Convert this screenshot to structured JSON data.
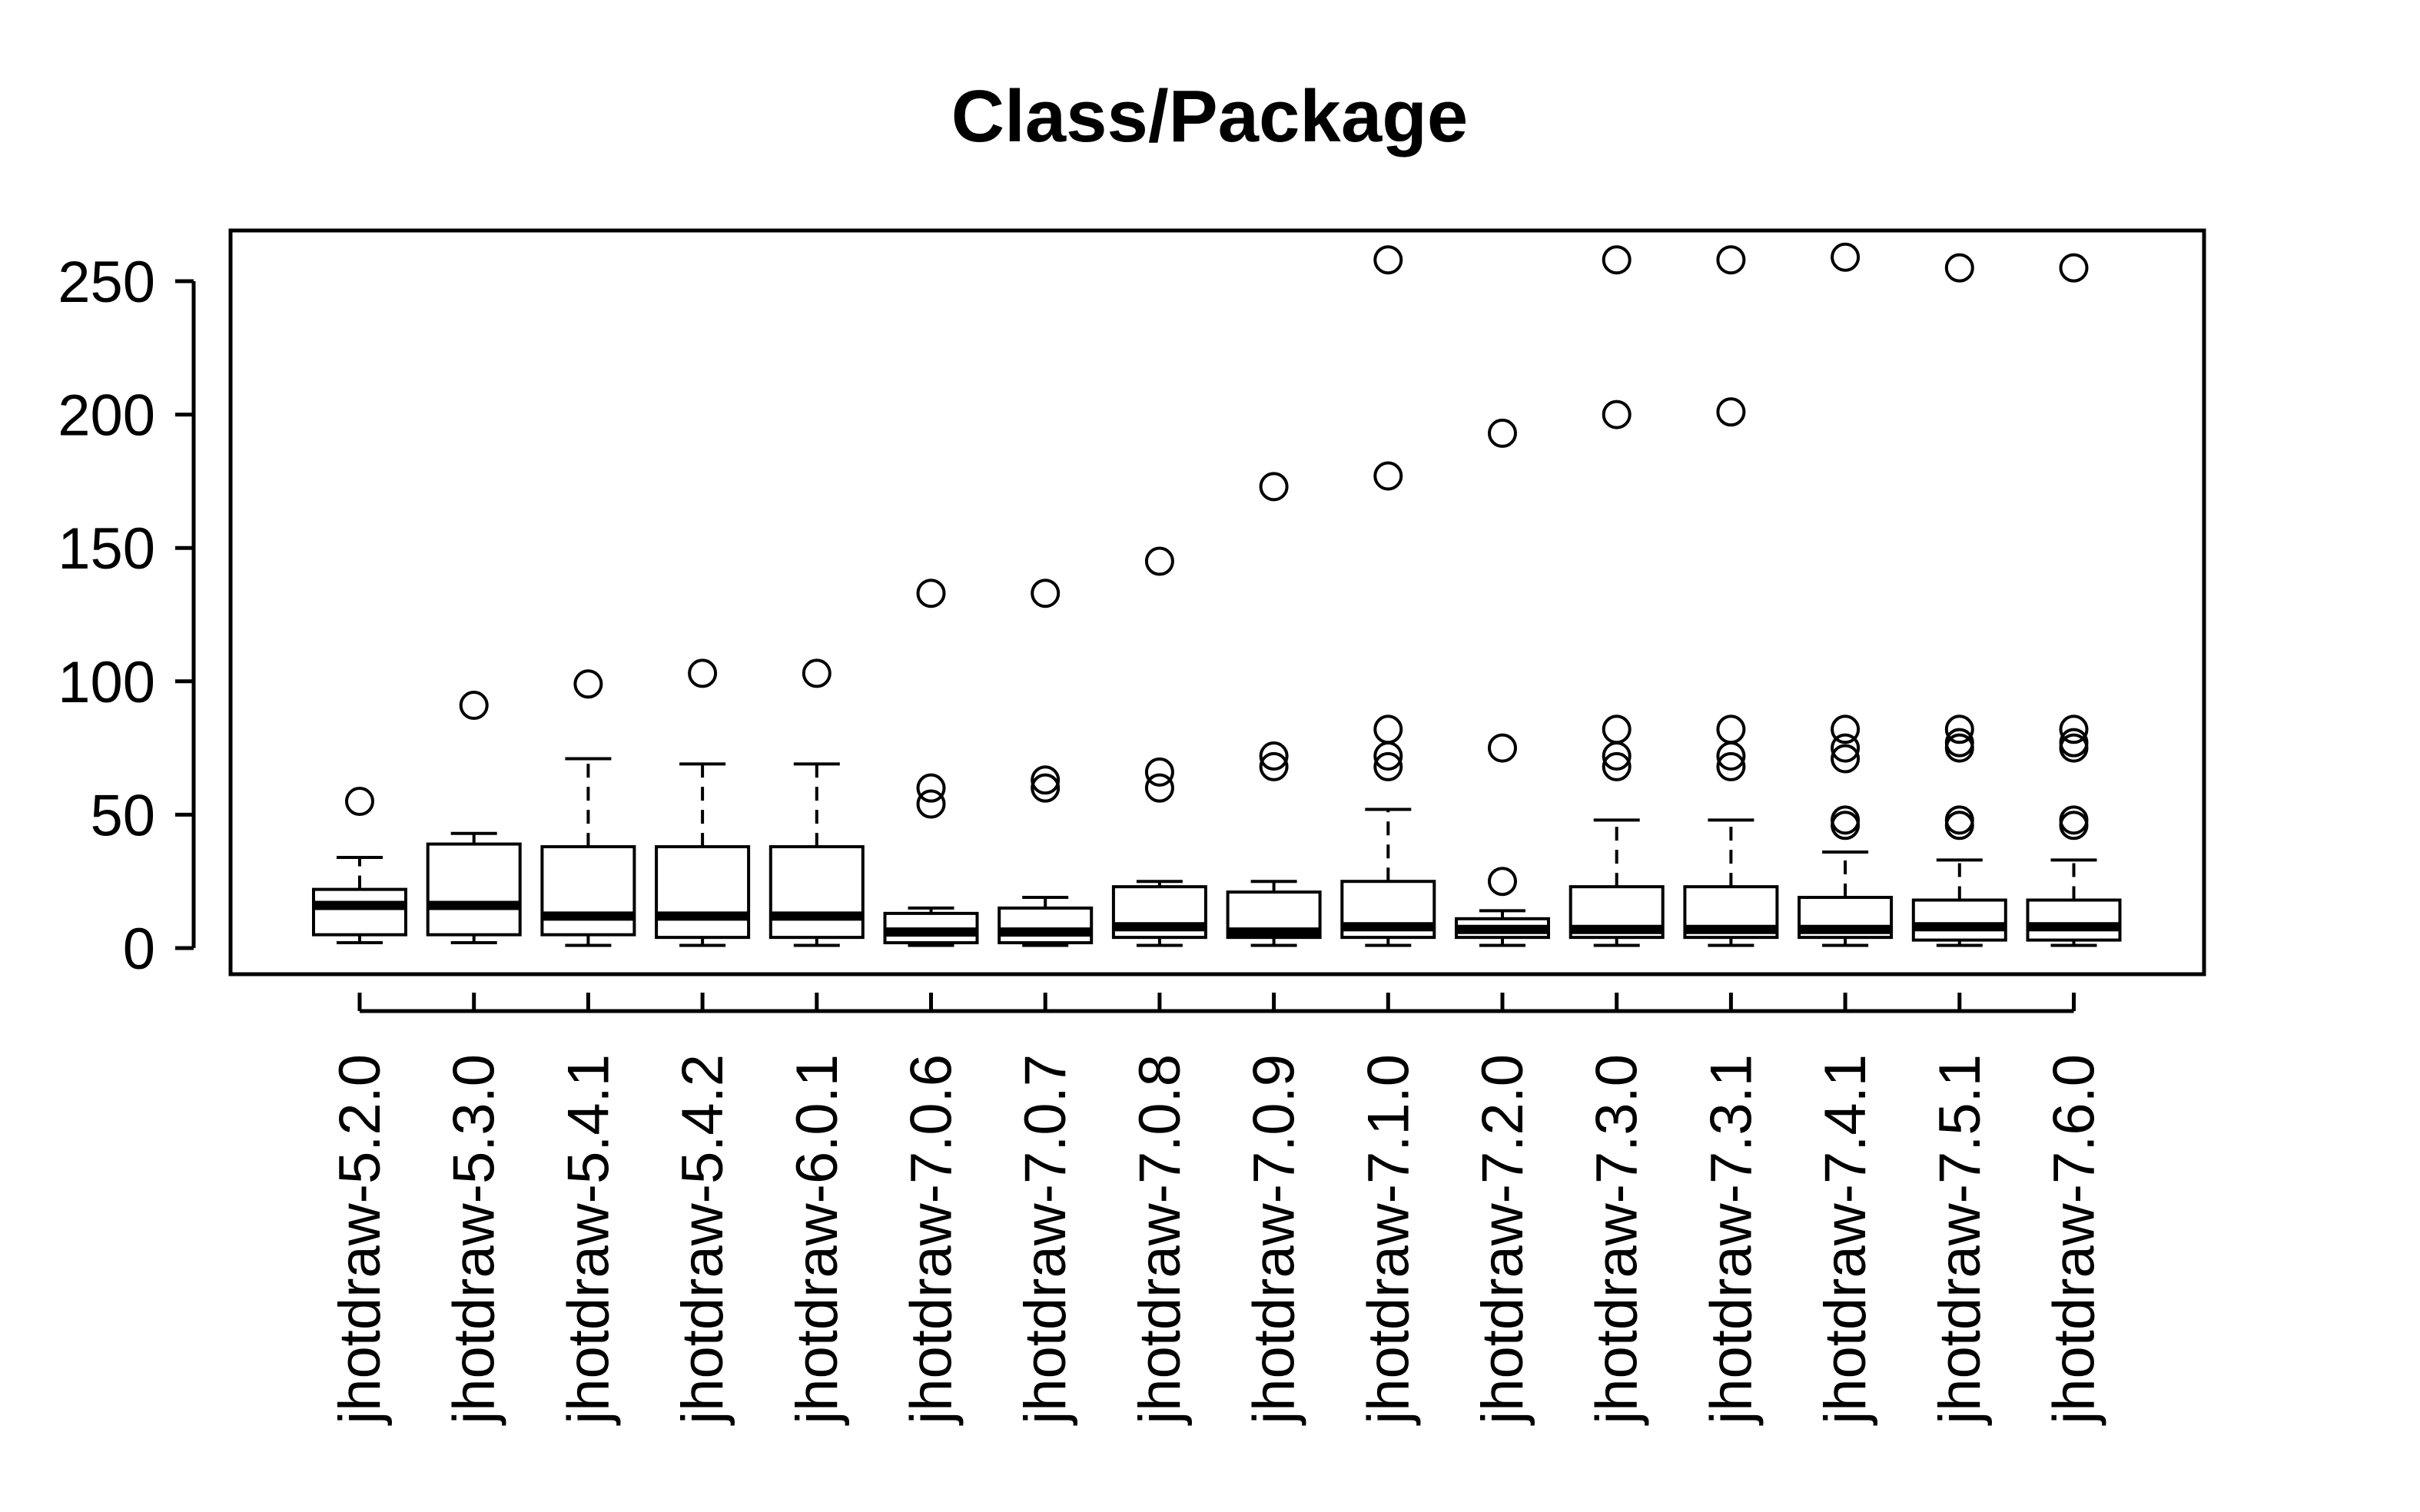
{
  "chart_data": {
    "type": "boxplot",
    "title": "Class/Package",
    "xlabel": "",
    "ylabel": "",
    "ylim": [
      -9,
      268
    ],
    "yticks": [
      0,
      50,
      100,
      150,
      200,
      250
    ],
    "grid": false,
    "legend": "none",
    "categories": [
      "jhotdraw-5.2.0",
      "jhotdraw-5.3.0",
      "jhotdraw-5.4.1",
      "jhotdraw-5.4.2",
      "jhotdraw-6.0.1",
      "jhotdraw-7.0.6",
      "jhotdraw-7.0.7",
      "jhotdraw-7.0.8",
      "jhotdraw-7.0.9",
      "jhotdraw-7.1.0",
      "jhotdraw-7.2.0",
      "jhotdraw-7.3.0",
      "jhotdraw-7.3.1",
      "jhotdraw-7.4.1",
      "jhotdraw-7.5.1",
      "jhotdraw-7.6.0"
    ],
    "boxes": [
      {
        "whisker_low": 2,
        "q1": 5,
        "median": 16,
        "q3": 22,
        "whisker_high": 34,
        "outliers": [
          55
        ]
      },
      {
        "whisker_low": 2,
        "q1": 5,
        "median": 16,
        "q3": 39,
        "whisker_high": 43,
        "outliers": [
          91
        ]
      },
      {
        "whisker_low": 1,
        "q1": 5,
        "median": 12,
        "q3": 38,
        "whisker_high": 71,
        "outliers": [
          99
        ]
      },
      {
        "whisker_low": 1,
        "q1": 4,
        "median": 12,
        "q3": 38,
        "whisker_high": 69,
        "outliers": [
          103
        ]
      },
      {
        "whisker_low": 1,
        "q1": 4,
        "median": 12,
        "q3": 38,
        "whisker_high": 69,
        "outliers": [
          103
        ]
      },
      {
        "whisker_low": 1,
        "q1": 2,
        "median": 6,
        "q3": 13,
        "whisker_high": 15,
        "outliers": [
          54,
          60,
          133
        ]
      },
      {
        "whisker_low": 1,
        "q1": 2,
        "median": 6,
        "q3": 15,
        "whisker_high": 19,
        "outliers": [
          60,
          63,
          133
        ]
      },
      {
        "whisker_low": 1,
        "q1": 4,
        "median": 8,
        "q3": 23,
        "whisker_high": 25,
        "outliers": [
          60,
          66,
          145
        ]
      },
      {
        "whisker_low": 1,
        "q1": 4,
        "median": 6,
        "q3": 21,
        "whisker_high": 25,
        "outliers": [
          68,
          72,
          173
        ]
      },
      {
        "whisker_low": 1,
        "q1": 4,
        "median": 8,
        "q3": 25,
        "whisker_high": 52,
        "outliers": [
          68,
          72,
          82,
          177,
          258
        ]
      },
      {
        "whisker_low": 1,
        "q1": 4,
        "median": 7,
        "q3": 11,
        "whisker_high": 14,
        "outliers": [
          25,
          75,
          193
        ]
      },
      {
        "whisker_low": 1,
        "q1": 4,
        "median": 7,
        "q3": 23,
        "whisker_high": 48,
        "outliers": [
          68,
          72,
          82,
          200,
          258
        ]
      },
      {
        "whisker_low": 1,
        "q1": 4,
        "median": 7,
        "q3": 23,
        "whisker_high": 48,
        "outliers": [
          68,
          72,
          82,
          201,
          258
        ]
      },
      {
        "whisker_low": 1,
        "q1": 4,
        "median": 7,
        "q3": 19,
        "whisker_high": 36,
        "outliers": [
          46,
          48,
          71,
          75,
          82,
          259
        ]
      },
      {
        "whisker_low": 1,
        "q1": 3,
        "median": 8,
        "q3": 18,
        "whisker_high": 33,
        "outliers": [
          46,
          48,
          75,
          77,
          82,
          255
        ]
      },
      {
        "whisker_low": 1,
        "q1": 3,
        "median": 8,
        "q3": 18,
        "whisker_high": 33,
        "outliers": [
          46,
          48,
          75,
          77,
          82,
          255
        ]
      }
    ]
  }
}
